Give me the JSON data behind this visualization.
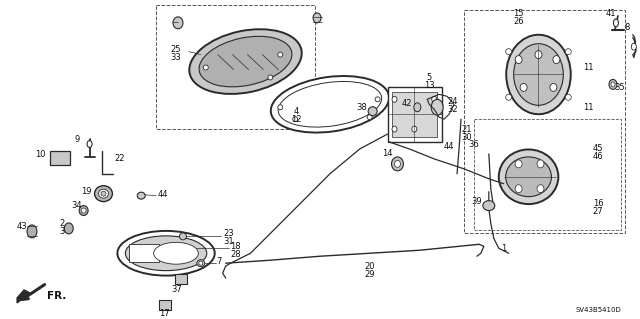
{
  "bg_color": "#ffffff",
  "fig_width": 6.4,
  "fig_height": 3.19,
  "dpi": 100,
  "diagram_id": "SV43B5410D",
  "line_color": "#2a2a2a",
  "lw_main": 1.0,
  "lw_thin": 0.6,
  "lw_thick": 1.4,
  "label_fontsize": 6.0,
  "label_color": "#111111"
}
